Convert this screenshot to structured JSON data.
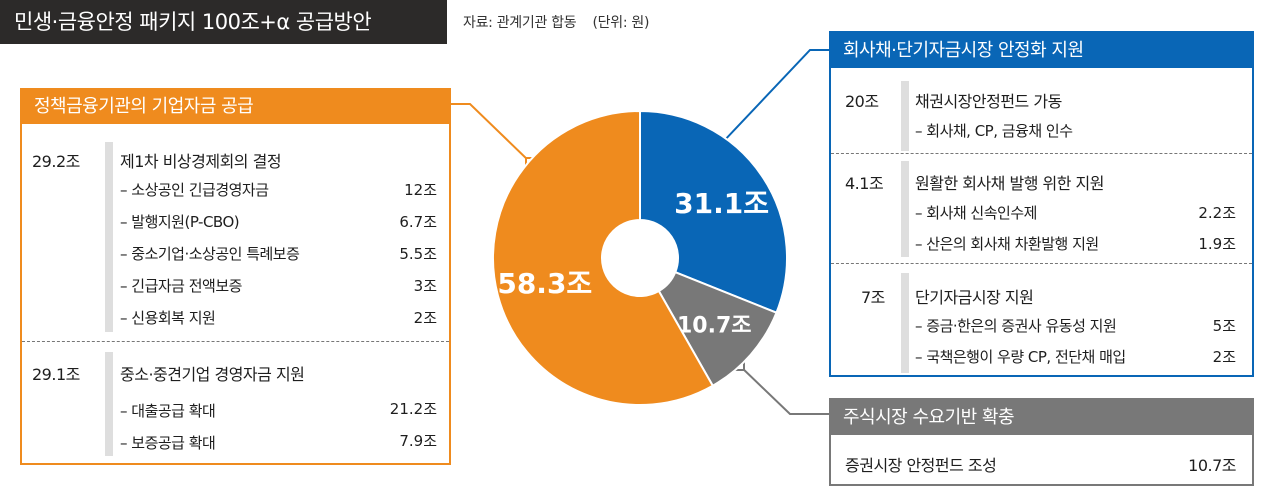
{
  "title": "민생·금융안정 패키지 100조+α 공급방안",
  "source": "자료: 관계기관 합동",
  "unit": "(단위: 원)",
  "colors": {
    "orange": "#ef8b1e",
    "blue": "#0966b6",
    "gray": "#787878",
    "dark": "#2c2a29"
  },
  "chart_data": {
    "type": "pie",
    "donut": true,
    "slices": [
      {
        "label": "31.1조",
        "value": 31.1,
        "color": "#0966b6"
      },
      {
        "label": "10.7조",
        "value": 10.7,
        "color": "#787878"
      },
      {
        "label": "58.3조",
        "value": 58.3,
        "color": "#ef8b1e"
      }
    ]
  },
  "left_panel": {
    "header": "정책금융기관의 기업자금 공급",
    "groups": [
      {
        "amount": "29.2조",
        "title": "제1차 비상경제회의 결정",
        "items": [
          {
            "label": "– 소상공인 긴급경영자금",
            "amount": "12조"
          },
          {
            "label": "– 발행지원(P-CBO)",
            "amount": "6.7조"
          },
          {
            "label": "– 중소기업·소상공인 특례보증",
            "amount": "5.5조"
          },
          {
            "label": "– 긴급자금 전액보증",
            "amount": "3조"
          },
          {
            "label": "– 신용회복 지원",
            "amount": "2조"
          }
        ]
      },
      {
        "amount": "29.1조",
        "title": "중소·중견기업 경영자금 지원",
        "items": [
          {
            "label": "– 대출공급 확대",
            "amount": "21.2조"
          },
          {
            "label": "– 보증공급 확대",
            "amount": "7.9조"
          }
        ]
      }
    ]
  },
  "right_panel": {
    "header": "회사채·단기자금시장 안정화 지원",
    "groups": [
      {
        "amount": "20조",
        "title": "채권시장안정펀드 가동",
        "items": [
          {
            "label": "– 회사채, CP, 금융채 인수",
            "amount": ""
          }
        ]
      },
      {
        "amount": "4.1조",
        "title": "원활한 회사채 발행 위한 지원",
        "items": [
          {
            "label": "– 회사채 신속인수제",
            "amount": "2.2조"
          },
          {
            "label": "– 산은의 회사채 차환발행 지원",
            "amount": "1.9조"
          }
        ]
      },
      {
        "amount": "7조",
        "title": "단기자금시장 지원",
        "items": [
          {
            "label": "– 증금·한은의 증권사 유동성 지원",
            "amount": "5조"
          },
          {
            "label": "– 국책은행이 우량 CP, 전단채 매입",
            "amount": "2조"
          }
        ]
      }
    ]
  },
  "bottom_panel": {
    "header": "주식시장 수요기반 확충",
    "item": {
      "label": "증권시장 안정펀드 조성",
      "amount": "10.7조"
    }
  }
}
